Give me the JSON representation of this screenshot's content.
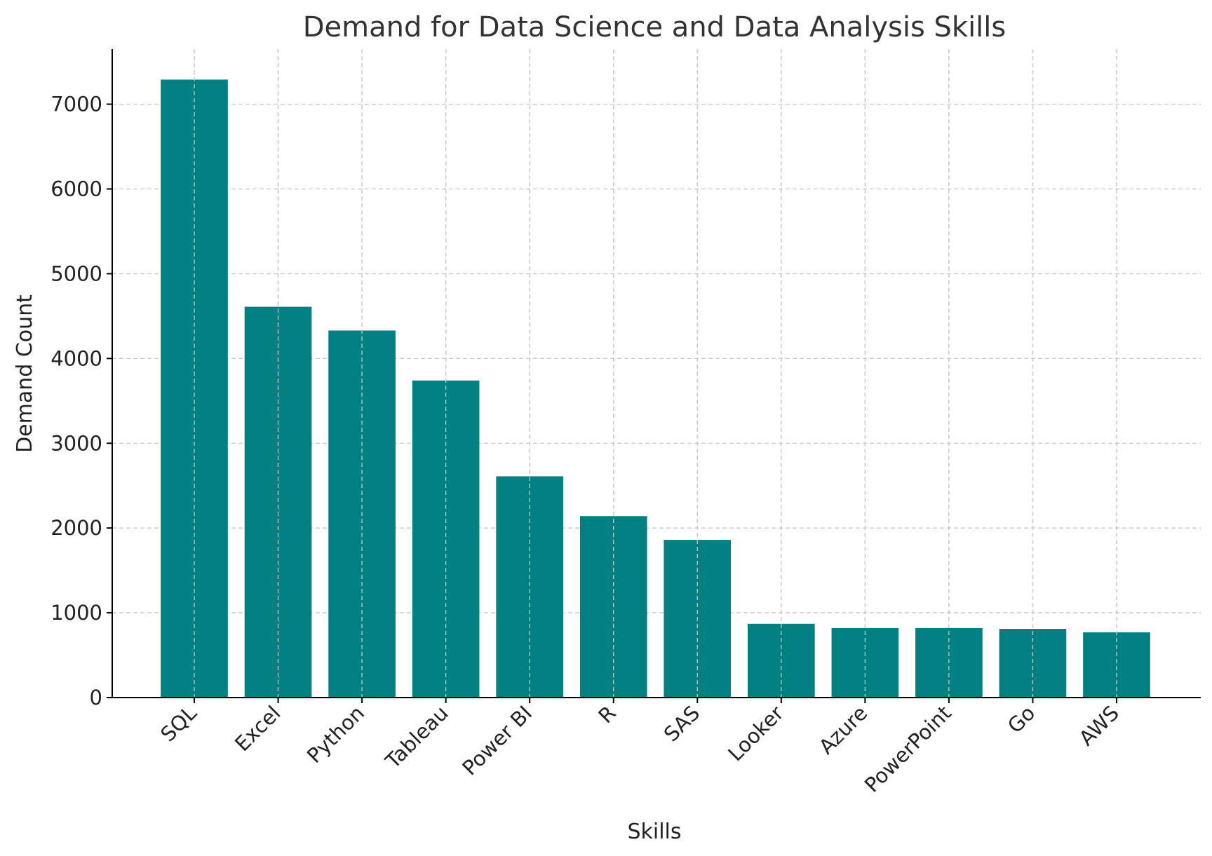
{
  "chart_data": {
    "type": "bar",
    "title": "Demand for Data Science and Data Analysis Skills",
    "xlabel": "Skills",
    "ylabel": "Demand Count",
    "categories": [
      "SQL",
      "Excel",
      "Python",
      "Tableau",
      "Power BI",
      "R",
      "SAS",
      "Looker",
      "Azure",
      "PowerPoint",
      "Go",
      "AWS"
    ],
    "values": [
      7290,
      4610,
      4330,
      3740,
      2610,
      2140,
      1860,
      870,
      820,
      820,
      810,
      770
    ],
    "yticks": [
      0,
      1000,
      2000,
      3000,
      4000,
      5000,
      6000,
      7000
    ],
    "ylim": [
      0,
      7650
    ],
    "grid": true,
    "bar_color": "#008080"
  }
}
